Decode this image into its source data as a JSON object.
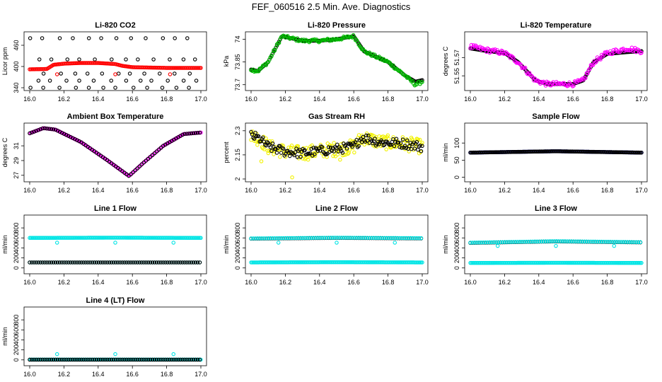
{
  "figure": {
    "title": "FEF_060516  2.5 Min. Ave. Diagnostics",
    "x_ticks": [
      "16.0",
      "16.2",
      "16.4",
      "16.6",
      "16.8",
      "17.0"
    ],
    "x_range": [
      16.0,
      17.0
    ]
  },
  "chart_data": [
    {
      "id": "co2",
      "type": "scatter",
      "title": "Li-820 CO2",
      "ylabel": "Licor ppm",
      "ylim": [
        340,
        490
      ],
      "yticks": [
        340,
        400,
        460
      ],
      "series": [
        {
          "name": "black",
          "color": "#000000",
          "kind": "grid",
          "levels": [
            340,
            360,
            380,
            420,
            480
          ]
        },
        {
          "name": "red",
          "color": "#ff0000",
          "kind": "curve",
          "knots": [
            [
              16.0,
              392
            ],
            [
              16.1,
              393
            ],
            [
              16.14,
              405
            ],
            [
              16.2,
              408
            ],
            [
              16.3,
              410
            ],
            [
              16.4,
              410
            ],
            [
              16.5,
              407
            ],
            [
              16.54,
              402
            ],
            [
              16.6,
              398
            ],
            [
              16.8,
              396
            ],
            [
              17.0,
              396
            ]
          ],
          "outliers": [
            [
              16.16,
              378
            ],
            [
              16.5,
              378
            ],
            [
              16.82,
              378
            ]
          ]
        }
      ]
    },
    {
      "id": "pressure",
      "type": "scatter",
      "title": "Li-820 Pressure",
      "ylabel": "kPa",
      "ylim": [
        73.68,
        74.03
      ],
      "yticks": [
        73.7,
        73.85,
        74.0
      ],
      "series": [
        {
          "name": "black",
          "color": "#000000",
          "kind": "curve",
          "knots": [
            [
              16.0,
              73.8
            ],
            [
              16.04,
              73.79
            ],
            [
              16.1,
              73.85
            ],
            [
              16.18,
              74.02
            ],
            [
              16.3,
              73.99
            ],
            [
              16.4,
              73.99
            ],
            [
              16.5,
              74.0
            ],
            [
              16.6,
              74.02
            ],
            [
              16.66,
              73.92
            ],
            [
              16.8,
              73.85
            ],
            [
              16.9,
              73.76
            ],
            [
              16.96,
              73.72
            ],
            [
              17.0,
              73.73
            ]
          ]
        },
        {
          "name": "green",
          "color": "#00bb00",
          "kind": "curve",
          "noise": 0.01,
          "knots": [
            [
              16.0,
              73.8
            ],
            [
              16.04,
              73.79
            ],
            [
              16.1,
              73.85
            ],
            [
              16.18,
              74.02
            ],
            [
              16.3,
              73.99
            ],
            [
              16.4,
              73.99
            ],
            [
              16.5,
              74.0
            ],
            [
              16.6,
              74.02
            ],
            [
              16.66,
              73.92
            ],
            [
              16.8,
              73.85
            ],
            [
              16.9,
              73.76
            ],
            [
              16.96,
              73.7
            ],
            [
              17.0,
              73.72
            ]
          ]
        }
      ]
    },
    {
      "id": "temperature",
      "type": "scatter",
      "title": "Li-820 Temperature",
      "ylabel": "degrees C",
      "ylim": [
        51.537,
        51.595
      ],
      "yticks": [
        51.55,
        51.57
      ],
      "series": [
        {
          "name": "black",
          "color": "#000000",
          "kind": "curve",
          "knots": [
            [
              16.0,
              51.58
            ],
            [
              16.1,
              51.577
            ],
            [
              16.2,
              51.575
            ],
            [
              16.28,
              51.565
            ],
            [
              16.38,
              51.545
            ],
            [
              16.45,
              51.541
            ],
            [
              16.6,
              51.541
            ],
            [
              16.66,
              51.545
            ],
            [
              16.72,
              51.565
            ],
            [
              16.8,
              51.574
            ],
            [
              16.92,
              51.576
            ],
            [
              17.0,
              51.577
            ]
          ]
        },
        {
          "name": "magenta",
          "color": "#ff00ff",
          "kind": "curve",
          "noise": 0.0025,
          "knots": [
            [
              16.0,
              51.582
            ],
            [
              16.1,
              51.578
            ],
            [
              16.2,
              51.575
            ],
            [
              16.28,
              51.565
            ],
            [
              16.38,
              51.545
            ],
            [
              16.45,
              51.541
            ],
            [
              16.6,
              51.541
            ],
            [
              16.66,
              51.545
            ],
            [
              16.72,
              51.565
            ],
            [
              16.8,
              51.575
            ],
            [
              16.92,
              51.58
            ],
            [
              17.0,
              51.577
            ]
          ]
        }
      ]
    },
    {
      "id": "ambient",
      "type": "scatter",
      "title": "Ambient Box Temperature",
      "ylabel": "degrees C",
      "ylim": [
        26.5,
        33.7
      ],
      "yticks": [
        27,
        29,
        31
      ],
      "series": [
        {
          "name": "magenta",
          "color": "#ff00ff",
          "kind": "curve",
          "knots": [
            [
              16.0,
              32.7
            ],
            [
              16.08,
              33.4
            ],
            [
              16.15,
              33.2
            ],
            [
              16.3,
              31.5
            ],
            [
              16.45,
              29.1
            ],
            [
              16.58,
              26.9
            ],
            [
              16.66,
              28.6
            ],
            [
              16.78,
              31.0
            ],
            [
              16.9,
              32.6
            ],
            [
              17.0,
              32.8
            ]
          ]
        },
        {
          "name": "black",
          "color": "#000000",
          "kind": "curve",
          "step": 2,
          "knots": [
            [
              16.0,
              32.7
            ],
            [
              16.08,
              33.4
            ],
            [
              16.15,
              33.2
            ],
            [
              16.3,
              31.5
            ],
            [
              16.45,
              29.1
            ],
            [
              16.58,
              26.9
            ],
            [
              16.66,
              28.6
            ],
            [
              16.78,
              31.0
            ],
            [
              16.9,
              32.6
            ],
            [
              17.0,
              32.8
            ]
          ]
        }
      ]
    },
    {
      "id": "rh",
      "type": "scatter",
      "title": "Gas Stream RH",
      "ylabel": "percent",
      "ylim": [
        2.0,
        2.33
      ],
      "yticks": [
        2.0,
        2.15,
        2.3
      ],
      "series": [
        {
          "name": "yellow",
          "color": "#f2f200",
          "kind": "curve",
          "noise": 0.045,
          "dense": true,
          "knots": [
            [
              16.0,
              2.27
            ],
            [
              16.05,
              2.25
            ],
            [
              16.1,
              2.2
            ],
            [
              16.2,
              2.17
            ],
            [
              16.3,
              2.16
            ],
            [
              16.45,
              2.18
            ],
            [
              16.6,
              2.2
            ],
            [
              16.65,
              2.26
            ],
            [
              16.75,
              2.23
            ],
            [
              16.9,
              2.22
            ],
            [
              17.0,
              2.2
            ]
          ],
          "outliers": [
            [
              16.06,
              2.11
            ],
            [
              16.24,
              2.01
            ],
            [
              16.52,
              2.12
            ]
          ]
        },
        {
          "name": "black",
          "color": "#000000",
          "kind": "curve",
          "noise": 0.03,
          "knots": [
            [
              16.0,
              2.27
            ],
            [
              16.05,
              2.25
            ],
            [
              16.1,
              2.2
            ],
            [
              16.2,
              2.17
            ],
            [
              16.3,
              2.16
            ],
            [
              16.45,
              2.18
            ],
            [
              16.6,
              2.2
            ],
            [
              16.65,
              2.26
            ],
            [
              16.75,
              2.23
            ],
            [
              16.9,
              2.22
            ],
            [
              17.0,
              2.2
            ]
          ]
        }
      ]
    },
    {
      "id": "sample",
      "type": "scatter",
      "title": "Sample Flow",
      "ylabel": "ml/min",
      "ylim": [
        -5,
        150
      ],
      "yticks": [
        0,
        50,
        100
      ],
      "series": [
        {
          "name": "blue",
          "color": "#0000dd",
          "kind": "curve",
          "knots": [
            [
              16.0,
              72
            ],
            [
              16.5,
              76
            ],
            [
              17.0,
              72
            ]
          ]
        },
        {
          "name": "black",
          "color": "#000000",
          "kind": "curve",
          "knots": [
            [
              16.0,
              72
            ],
            [
              16.5,
              76
            ],
            [
              17.0,
              72
            ]
          ]
        }
      ]
    },
    {
      "id": "line1",
      "type": "scatter",
      "title": "Line 1 Flow",
      "ylabel": "ml/min",
      "ylim": [
        -60,
        1000
      ],
      "yticks": [
        0,
        200,
        400,
        600,
        800
      ],
      "series": [
        {
          "name": "cyan",
          "color": "#00e5e5",
          "kind": "curve",
          "knots": [
            [
              16.0,
              600
            ],
            [
              16.5,
              605
            ],
            [
              17.0,
              600
            ]
          ],
          "outliers": [
            [
              16.16,
              505
            ],
            [
              16.5,
              505
            ],
            [
              16.84,
              505
            ]
          ]
        },
        {
          "name": "cyan-low",
          "color": "#00e5e5",
          "kind": "curve",
          "step": 2,
          "knots": [
            [
              16.0,
              110
            ],
            [
              17.0,
              110
            ]
          ]
        },
        {
          "name": "black",
          "color": "#000000",
          "kind": "curve",
          "step": 2,
          "knots": [
            [
              16.0,
              110
            ],
            [
              17.0,
              110
            ]
          ]
        }
      ]
    },
    {
      "id": "line2",
      "type": "scatter",
      "title": "Line 2 Flow",
      "ylabel": "ml/min",
      "ylim": [
        -60,
        1000
      ],
      "yticks": [
        0,
        200,
        400,
        600,
        800
      ],
      "series": [
        {
          "name": "cyan",
          "color": "#00e5e5",
          "kind": "curve",
          "knots": [
            [
              16.0,
              110
            ],
            [
              16.5,
              115
            ],
            [
              17.0,
              110
            ]
          ]
        },
        {
          "name": "black",
          "color": "#000000",
          "kind": "curve",
          "step": 2,
          "knots": [
            [
              16.0,
              585
            ],
            [
              16.5,
              600
            ],
            [
              17.0,
              590
            ]
          ]
        },
        {
          "name": "cyan-high",
          "color": "#00e5e5",
          "kind": "curve",
          "step": 2,
          "knots": [
            [
              16.0,
              590
            ],
            [
              16.5,
              605
            ],
            [
              17.0,
              595
            ]
          ],
          "outliers": [
            [
              16.16,
              505
            ],
            [
              16.5,
              505
            ],
            [
              16.84,
              505
            ]
          ]
        }
      ]
    },
    {
      "id": "line3",
      "type": "scatter",
      "title": "Line 3 Flow",
      "ylabel": "ml/min",
      "ylim": [
        -60,
        1000
      ],
      "yticks": [
        0,
        200,
        400,
        600,
        800
      ],
      "series": [
        {
          "name": "cyan",
          "color": "#00e5e5",
          "kind": "curve",
          "knots": [
            [
              16.0,
              100
            ],
            [
              16.5,
              103
            ],
            [
              17.0,
              100
            ]
          ]
        },
        {
          "name": "black",
          "color": "#000000",
          "kind": "curve",
          "step": 2,
          "knots": [
            [
              16.0,
              500
            ],
            [
              16.5,
              530
            ],
            [
              17.0,
              510
            ]
          ]
        },
        {
          "name": "cyan-high",
          "color": "#00e5e5",
          "kind": "curve",
          "step": 2,
          "knots": [
            [
              16.0,
              505
            ],
            [
              16.5,
              535
            ],
            [
              17.0,
              515
            ]
          ],
          "outliers": [
            [
              16.16,
              440
            ],
            [
              16.5,
              440
            ],
            [
              16.84,
              440
            ]
          ]
        }
      ]
    },
    {
      "id": "line4",
      "type": "scatter",
      "title": "Line 4 (LT) Flow",
      "ylabel": "ml/min",
      "ylim": [
        -60,
        1000
      ],
      "yticks": [
        0,
        200,
        400,
        600,
        800
      ],
      "series": [
        {
          "name": "cyan",
          "color": "#00e5e5",
          "kind": "curve",
          "knots": [
            [
              16.0,
              5
            ],
            [
              17.0,
              5
            ]
          ],
          "outliers": [
            [
              16.16,
              115
            ],
            [
              16.5,
              115
            ],
            [
              16.84,
              115
            ]
          ]
        },
        {
          "name": "black",
          "color": "#000000",
          "kind": "curve",
          "step": 2,
          "knots": [
            [
              16.0,
              5
            ],
            [
              17.0,
              5
            ]
          ]
        }
      ]
    }
  ]
}
